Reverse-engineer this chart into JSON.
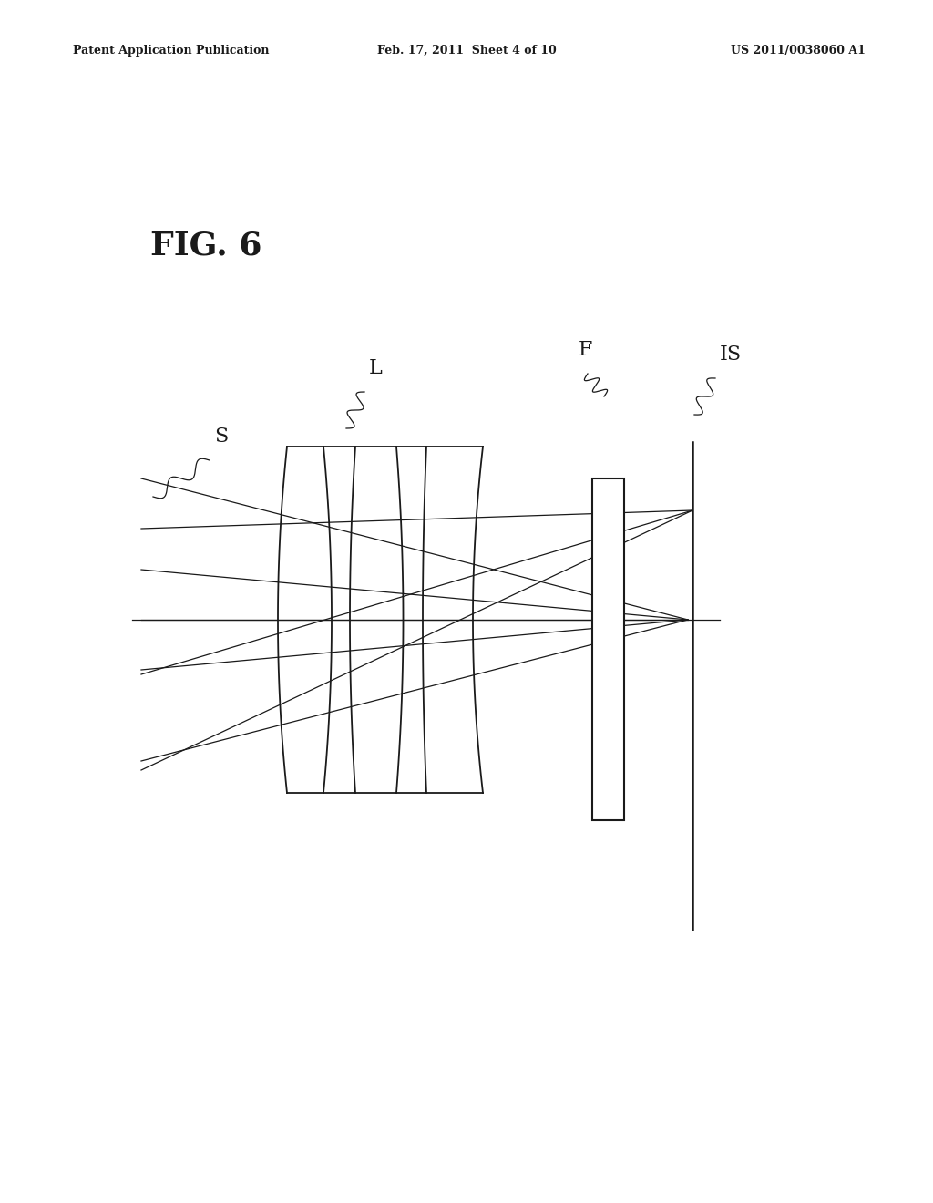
{
  "header_left": "Patent Application Publication",
  "header_mid": "Feb. 17, 2011  Sheet 4 of 10",
  "header_right": "US 2011/0038060 A1",
  "fig_label": "FIG. 6",
  "bg_color": "#ffffff",
  "line_color": "#1a1a1a",
  "label_S": "S",
  "label_L": "L",
  "label_F": "F",
  "label_IS": "IS"
}
